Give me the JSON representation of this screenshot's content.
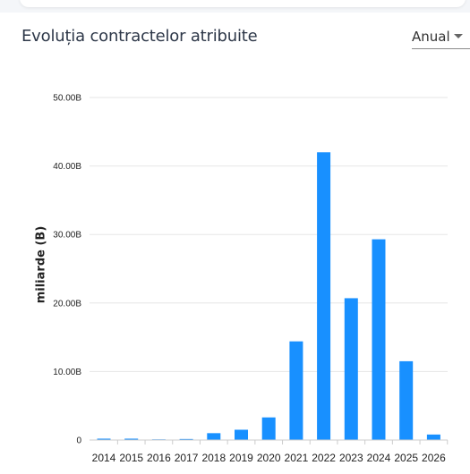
{
  "header": {
    "title": "Evoluția contractelor atribuite",
    "period_select": {
      "value": "Anual"
    }
  },
  "chart_data": {
    "type": "bar",
    "title": "Evoluția contractelor atribuite",
    "categories": [
      "2014",
      "2015",
      "2016",
      "2017",
      "2018",
      "2019",
      "2020",
      "2021",
      "2022",
      "2023",
      "2024",
      "2025",
      "2026"
    ],
    "series": [
      {
        "values": [
          0.2,
          0.2,
          0.1,
          0.15,
          1.0,
          1.5,
          3.3,
          14.4,
          42.0,
          20.7,
          29.3,
          11.5,
          0.8
        ]
      }
    ],
    "xlabel": "",
    "ylabel": "miliarde (B)",
    "ylim": [
      0,
      50
    ],
    "yticks": [
      0,
      10,
      20,
      30,
      40,
      50
    ],
    "ytick_labels": [
      "0",
      "10.00B",
      "20.00B",
      "30.00B",
      "40.00B",
      "50.00B"
    ],
    "bar_color": "#1890ff",
    "grid": true,
    "legend": "none"
  }
}
